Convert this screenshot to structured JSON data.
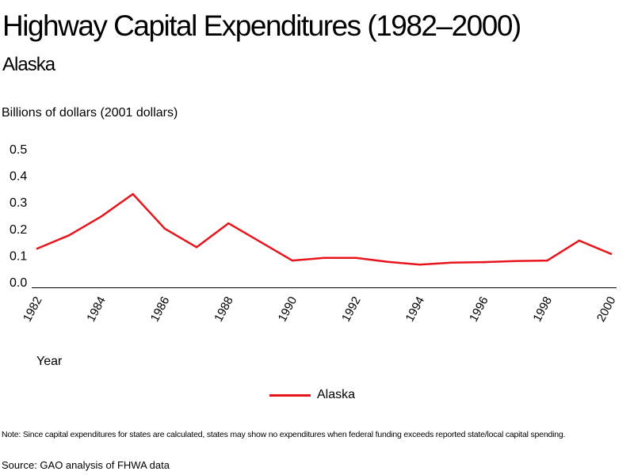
{
  "header": {
    "title": "Highway Capital Expenditures (1982–2000)",
    "subtitle": "Alaska"
  },
  "footer": {
    "note": "Note: Since capital expenditures for states are calculated, states may show no expenditures when federal funding exceeds reported state/local capital spending.",
    "source": "Source: GAO analysis of FHWA data"
  },
  "chart_data": {
    "type": "line",
    "title": "Highway Capital Expenditures (1982–2000)",
    "subtitle": "Alaska",
    "ylabel": "Billions of dollars (2001 dollars)",
    "xlabel": "Year",
    "ylim": [
      0,
      0.5
    ],
    "yticks": [
      "0.0",
      "0.1",
      "0.2",
      "0.3",
      "0.4",
      "0.5"
    ],
    "x": [
      1982,
      1983,
      1984,
      1985,
      1986,
      1987,
      1988,
      1989,
      1990,
      1991,
      1992,
      1993,
      1994,
      1995,
      1996,
      1997,
      1998,
      1999,
      2000
    ],
    "xticks": [
      "1982",
      "1984",
      "1986",
      "1988",
      "1990",
      "1992",
      "1994",
      "1996",
      "1998",
      "2000"
    ],
    "series": [
      {
        "name": "Alaska",
        "color": "#e8141b",
        "values": [
          0.125,
          0.175,
          0.245,
          0.33,
          0.2,
          0.13,
          0.22,
          0.15,
          0.08,
          0.09,
          0.09,
          0.075,
          0.065,
          0.072,
          0.074,
          0.078,
          0.08,
          0.155,
          0.105
        ]
      }
    ],
    "legend": "bottom-center",
    "grid": false
  }
}
